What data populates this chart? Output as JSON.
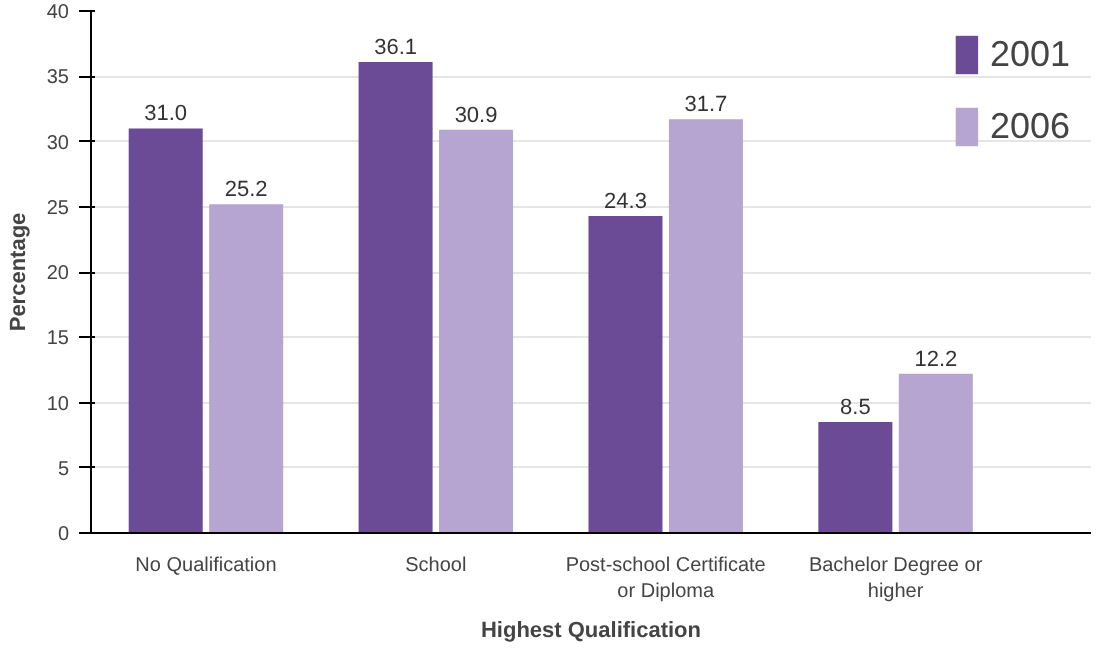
{
  "chart_data": {
    "type": "bar",
    "xlabel": "Highest Qualification",
    "ylabel": "Percentage",
    "categories": [
      "No Qualification",
      "School",
      "Post-school Certificate or Diploma",
      "Bachelor Degree or higher"
    ],
    "series": [
      {
        "name": "2001",
        "color": "#6b4a96",
        "values": [
          31.0,
          36.1,
          24.3,
          8.5
        ],
        "value_labels": [
          "31.0",
          "36.1",
          "24.3",
          "8.5"
        ]
      },
      {
        "name": "2006",
        "color": "#b7a5d1",
        "values": [
          25.2,
          30.9,
          31.7,
          12.2
        ],
        "value_labels": [
          "25.2",
          "30.9",
          "31.7",
          "12.2"
        ]
      }
    ],
    "ylim": [
      0,
      40
    ],
    "yticks": [
      0,
      5,
      10,
      15,
      20,
      25,
      30,
      35,
      40
    ],
    "grid": "y",
    "legend": "top right"
  }
}
